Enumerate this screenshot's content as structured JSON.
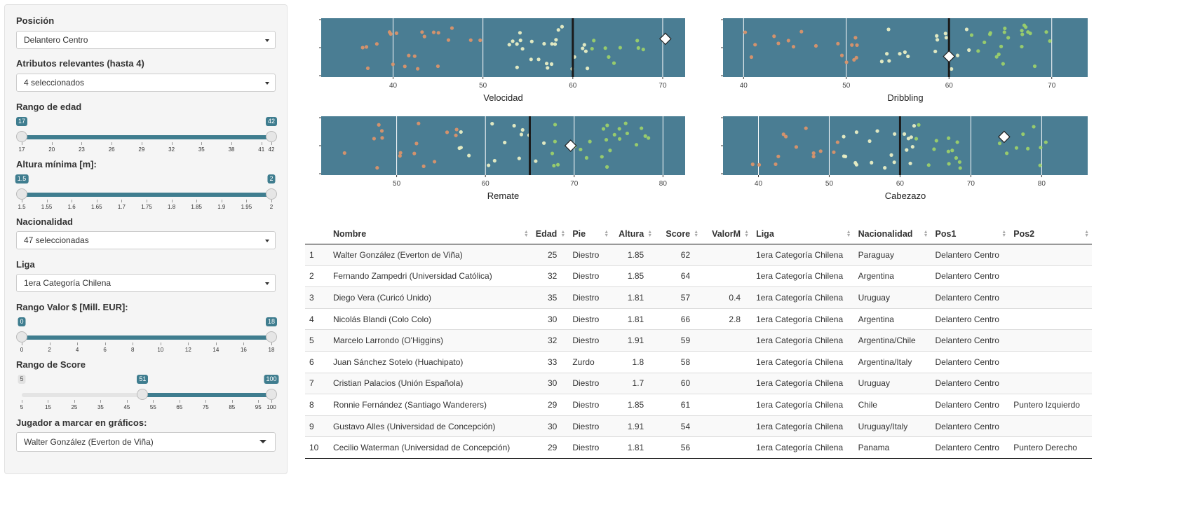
{
  "sidebar": {
    "posicion_label": "Posición",
    "posicion_value": "Delantero Centro",
    "atributos_label": "Atributos relevantes (hasta 4)",
    "atributos_value": "4 seleccionados",
    "edad": {
      "label": "Rango de edad",
      "min": 17,
      "max": 42,
      "from": 17,
      "to": 42,
      "from_label": "17",
      "to_label": "42",
      "ticks": [
        "17",
        "20",
        "23",
        "26",
        "29",
        "32",
        "35",
        "38",
        "41",
        "42"
      ]
    },
    "altura": {
      "label": "Altura mínima [m]:",
      "min": 1.5,
      "max": 2,
      "from": 1.5,
      "to": 2,
      "from_label": "1.5",
      "to_label": "2",
      "ticks": [
        "1.5",
        "1.55",
        "1.6",
        "1.65",
        "1.7",
        "1.75",
        "1.8",
        "1.85",
        "1.9",
        "1.95",
        "2"
      ]
    },
    "nacionalidad_label": "Nacionalidad",
    "nacionalidad_value": "47 seleccionadas",
    "liga_label": "Liga",
    "liga_value": "1era Categoría Chilena",
    "valor": {
      "label": "Rango Valor $ [Mill. EUR]:",
      "min": 0,
      "max": 18,
      "from": 0,
      "to": 18,
      "from_label": "0",
      "to_label": "18",
      "ticks": [
        "0",
        "2",
        "4",
        "6",
        "8",
        "10",
        "12",
        "14",
        "16",
        "18"
      ]
    },
    "score": {
      "label": "Rango de Score",
      "min": 5,
      "max": 100,
      "from": 51,
      "to": 100,
      "min_label": "5",
      "from_label": "51",
      "to_label": "100",
      "ticks": [
        "5",
        "15",
        "25",
        "35",
        "45",
        "55",
        "65",
        "75",
        "85",
        "95",
        "100"
      ]
    },
    "jugador_label": "Jugador a marcar en gráficos:",
    "jugador_value": "Walter González (Everton de Viña)"
  },
  "chart_data": [
    {
      "type": "scatter",
      "xlabel": "Velocidad",
      "xlim": [
        32,
        72.5
      ],
      "ticks": [
        40,
        50,
        60,
        70
      ],
      "median": 60,
      "marker": 70.3,
      "marker_y": 0.3
    },
    {
      "type": "scatter",
      "xlabel": "Dribbling",
      "xlim": [
        38,
        73.5
      ],
      "ticks": [
        40,
        50,
        60,
        70
      ],
      "median": 60,
      "marker": 60,
      "marker_y": -0.3
    },
    {
      "type": "scatter",
      "xlabel": "Remate",
      "xlim": [
        41.5,
        82.5
      ],
      "ticks": [
        50,
        60,
        70,
        80
      ],
      "median": 65,
      "marker": 69.6,
      "marker_y": 0
    },
    {
      "type": "scatter",
      "xlabel": "Cabezazo",
      "xlim": [
        35,
        86.5
      ],
      "ticks": [
        40,
        50,
        60,
        70,
        80
      ],
      "median": 60,
      "marker": 74.7,
      "marker_y": 0.3
    }
  ],
  "table": {
    "headers": [
      "",
      "Nombre",
      "Edad",
      "Pie",
      "Altura",
      "Score",
      "ValorM",
      "Liga",
      "Nacionalidad",
      "Pos1",
      "Pos2"
    ],
    "rows": [
      [
        "1",
        "Walter González (Everton de Viña)",
        "25",
        "Diestro",
        "1.85",
        "62",
        "",
        "1era Categoría Chilena",
        "Paraguay",
        "Delantero Centro",
        ""
      ],
      [
        "2",
        "Fernando Zampedri (Universidad Católica)",
        "32",
        "Diestro",
        "1.85",
        "64",
        "",
        "1era Categoría Chilena",
        "Argentina",
        "Delantero Centro",
        ""
      ],
      [
        "3",
        "Diego Vera (Curicó Unido)",
        "35",
        "Diestro",
        "1.81",
        "57",
        "0.4",
        "1era Categoría Chilena",
        "Uruguay",
        "Delantero Centro",
        ""
      ],
      [
        "4",
        "Nicolás Blandi (Colo Colo)",
        "30",
        "Diestro",
        "1.81",
        "66",
        "2.8",
        "1era Categoría Chilena",
        "Argentina",
        "Delantero Centro",
        ""
      ],
      [
        "5",
        "Marcelo Larrondo (O'Higgins)",
        "32",
        "Diestro",
        "1.91",
        "59",
        "",
        "1era Categoría Chilena",
        "Argentina/Chile",
        "Delantero Centro",
        ""
      ],
      [
        "6",
        "Juan Sánchez Sotelo (Huachipato)",
        "33",
        "Zurdo",
        "1.8",
        "58",
        "",
        "1era Categoría Chilena",
        "Argentina/Italy",
        "Delantero Centro",
        ""
      ],
      [
        "7",
        "Cristian Palacios (Unión Española)",
        "30",
        "Diestro",
        "1.7",
        "60",
        "",
        "1era Categoría Chilena",
        "Uruguay",
        "Delantero Centro",
        ""
      ],
      [
        "8",
        "Ronnie Fernández (Santiago Wanderers)",
        "29",
        "Diestro",
        "1.85",
        "61",
        "",
        "1era Categoría Chilena",
        "Chile",
        "Delantero Centro",
        "Puntero Izquierdo"
      ],
      [
        "9",
        "Gustavo Alles (Universidad de Concepción)",
        "30",
        "Diestro",
        "1.91",
        "54",
        "",
        "1era Categoría Chilena",
        "Uruguay/Italy",
        "Delantero Centro",
        ""
      ],
      [
        "10",
        "Cecilio Waterman (Universidad de Concepción)",
        "29",
        "Diestro",
        "1.81",
        "56",
        "",
        "1era Categoría Chilena",
        "Panama",
        "Delantero Centro",
        "Puntero Derecho"
      ]
    ]
  },
  "colors": {
    "panel": "#4a7d93",
    "low": "#d9946a",
    "mid": "#e8eec4",
    "high": "#9bd06a",
    "median": "#1a1a1a",
    "slider": "#3f7d8f"
  }
}
